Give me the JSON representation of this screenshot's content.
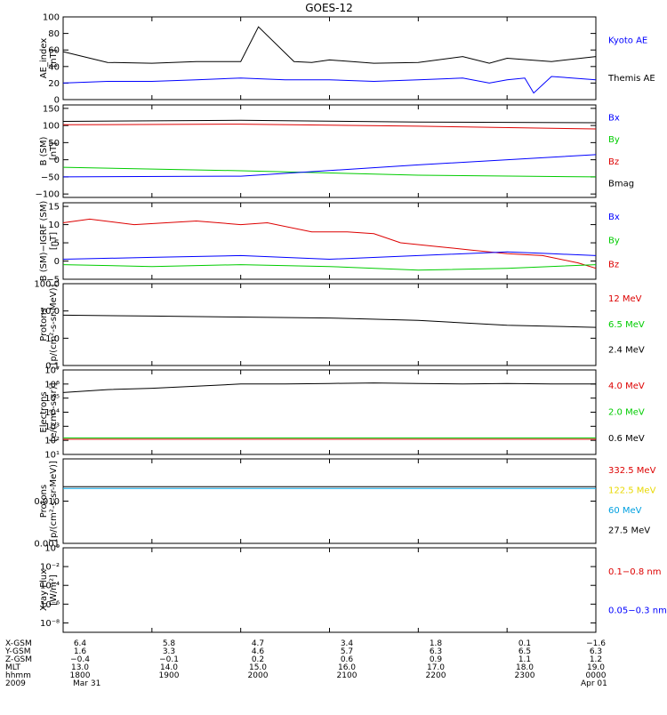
{
  "title": "GOES-12",
  "colors": {
    "black": "#000000",
    "blue": "#0000ff",
    "red": "#dd0000",
    "green": "#00cc00",
    "cyan": "#00a0e0",
    "yellow": "#e8d800",
    "frame": "#000000"
  },
  "chart_data": [
    {
      "type": "line",
      "ylabel": "AE_index",
      "yunit": "[nT]",
      "ylim": [
        0,
        100
      ],
      "yticks": [
        "0",
        "20",
        "40",
        "60",
        "80",
        "100"
      ],
      "ytick_values": [
        0,
        20,
        40,
        60,
        80,
        100
      ],
      "legend": [
        {
          "name": "Kyoto AE",
          "color": "#0000ff"
        },
        {
          "name": "Themis AE",
          "color": "#000000"
        }
      ],
      "series": [
        {
          "name": "Themis AE",
          "color": "#000000",
          "x": [
            0,
            0.5,
            1,
            1.5,
            2,
            2.2,
            2.6,
            2.8,
            3,
            3.5,
            4,
            4.5,
            4.8,
            5,
            5.5,
            6
          ],
          "y": [
            58,
            45,
            44,
            46,
            46,
            88,
            46,
            45,
            48,
            44,
            45,
            52,
            44,
            50,
            46,
            52
          ]
        },
        {
          "name": "Kyoto AE",
          "color": "#0000ff",
          "x": [
            0,
            0.5,
            1,
            1.5,
            2,
            2.5,
            3,
            3.5,
            4,
            4.5,
            4.8,
            5,
            5.2,
            5.3,
            5.5,
            6
          ],
          "y": [
            20,
            22,
            22,
            24,
            26,
            24,
            24,
            22,
            24,
            26,
            20,
            24,
            26,
            8,
            28,
            24
          ]
        }
      ]
    },
    {
      "type": "line",
      "ylabel": "B (SM)",
      "yunit": "[nT]",
      "ylim": [
        -110,
        160
      ],
      "yticks": [
        "−100",
        "−50",
        "0",
        "50",
        "100",
        "150"
      ],
      "ytick_values": [
        -100,
        -50,
        0,
        50,
        100,
        150
      ],
      "legend": [
        {
          "name": "Bx",
          "color": "#0000ff"
        },
        {
          "name": "By",
          "color": "#00cc00"
        },
        {
          "name": "Bz",
          "color": "#dd0000"
        },
        {
          "name": "Bmag",
          "color": "#000000"
        }
      ],
      "series": [
        {
          "name": "Bmag",
          "color": "#000000",
          "x": [
            0,
            2,
            4,
            6
          ],
          "y": [
            112,
            115,
            110,
            108
          ]
        },
        {
          "name": "Bz",
          "color": "#dd0000",
          "x": [
            0,
            2,
            4,
            6
          ],
          "y": [
            102,
            104,
            98,
            90
          ]
        },
        {
          "name": "By",
          "color": "#00cc00",
          "x": [
            0,
            2,
            4,
            6
          ],
          "y": [
            -22,
            -32,
            -45,
            -50
          ]
        },
        {
          "name": "Bx",
          "color": "#0000ff",
          "x": [
            0,
            2,
            4,
            6
          ],
          "y": [
            -50,
            -48,
            -15,
            15
          ]
        }
      ]
    },
    {
      "type": "line",
      "ylabel": "B (SM)−IGRF (SM)",
      "yunit": "[nT]",
      "ylim": [
        -5,
        16
      ],
      "yticks": [
        "−5",
        "0",
        "5",
        "10",
        "15"
      ],
      "ytick_values": [
        -5,
        0,
        5,
        10,
        15
      ],
      "legend": [
        {
          "name": "Bx",
          "color": "#0000ff"
        },
        {
          "name": "By",
          "color": "#00cc00"
        },
        {
          "name": "Bz",
          "color": "#dd0000"
        }
      ],
      "series": [
        {
          "name": "Bz",
          "color": "#dd0000",
          "x": [
            0,
            0.3,
            0.8,
            1.5,
            2,
            2.3,
            2.8,
            3.2,
            3.5,
            3.8,
            4.2,
            4.6,
            5,
            5.4,
            5.8,
            6
          ],
          "y": [
            10.5,
            11.5,
            10,
            11,
            10,
            10.5,
            8,
            8,
            7.5,
            5,
            4,
            3,
            2,
            1.5,
            -0.5,
            -2
          ]
        },
        {
          "name": "Bx",
          "color": "#0000ff",
          "x": [
            0,
            1,
            2,
            3,
            4,
            5,
            5.5,
            6
          ],
          "y": [
            0.5,
            1,
            1.5,
            0.5,
            1.5,
            2.5,
            2,
            1.5
          ]
        },
        {
          "name": "By",
          "color": "#00cc00",
          "x": [
            0,
            1,
            2,
            3,
            4,
            5,
            6
          ],
          "y": [
            -1,
            -1.5,
            -1,
            -1.5,
            -2.5,
            -2,
            -1
          ]
        }
      ]
    },
    {
      "type": "line",
      "ylabel": "Protons",
      "yunit": "[p/(cm²-s-sr-MeV)]",
      "yscale": "log",
      "ylim": [
        0.1,
        100
      ],
      "yticks": [
        "0.1",
        "1.0",
        "10.0",
        "100.0"
      ],
      "ytick_values": [
        0.1,
        1,
        10,
        100
      ],
      "legend": [
        {
          "name": "12 MeV",
          "color": "#dd0000"
        },
        {
          "name": "6.5 MeV",
          "color": "#00cc00"
        },
        {
          "name": "2.4 MeV",
          "color": "#000000"
        }
      ],
      "series": [
        {
          "name": "2.4 MeV",
          "color": "#000000",
          "x": [
            0,
            1,
            2,
            3,
            4,
            5,
            6
          ],
          "y": [
            7,
            6.5,
            6,
            5.5,
            4.5,
            3,
            2.5
          ]
        }
      ]
    },
    {
      "type": "line",
      "ylabel": "Electrons",
      "yunit": "[e/(cm²-s-sr)]",
      "yscale": "log",
      "ylim": [
        10,
        10000000
      ],
      "yticks": [
        "10¹",
        "10²",
        "10³",
        "10⁴",
        "10⁵",
        "10⁶",
        "10⁷"
      ],
      "ytick_values": [
        10,
        100,
        1000,
        10000,
        100000,
        1000000,
        10000000
      ],
      "legend": [
        {
          "name": "4.0 MeV",
          "color": "#dd0000"
        },
        {
          "name": "2.0 MeV",
          "color": "#00cc00"
        },
        {
          "name": "0.6 MeV",
          "color": "#000000"
        }
      ],
      "series": [
        {
          "name": "0.6 MeV",
          "color": "#000000",
          "x": [
            0,
            0.5,
            1,
            1.5,
            2,
            2.5,
            3,
            3.5,
            4,
            4.5,
            5,
            5.5,
            6
          ],
          "y": [
            250000,
            400000,
            500000,
            700000,
            1000000,
            1000000,
            1100000,
            1200000,
            1100000,
            1000000,
            1100000,
            1000000,
            1000000
          ]
        },
        {
          "name": "2.0 MeV",
          "color": "#00cc00",
          "x": [
            0,
            6
          ],
          "y": [
            150,
            150
          ]
        },
        {
          "name": "4.0 MeV",
          "color": "#dd0000",
          "x": [
            0,
            6
          ],
          "y": [
            120,
            120
          ]
        }
      ]
    },
    {
      "type": "line",
      "ylabel": "Protons",
      "yunit": "[p/(cm²-s-sr-MeV)]",
      "yscale": "log",
      "ylim": [
        0.001,
        0.1
      ],
      "yticks": [
        "0.001",
        "0.010"
      ],
      "ytick_values": [
        0.001,
        0.01
      ],
      "legend": [
        {
          "name": "332.5 MeV",
          "color": "#dd0000"
        },
        {
          "name": "122.5 MeV",
          "color": "#e8d800"
        },
        {
          "name": "60 MeV",
          "color": "#00a0e0"
        },
        {
          "name": "27.5 MeV",
          "color": "#000000"
        }
      ],
      "series": [
        {
          "name": "27.5 MeV",
          "color": "#000000",
          "x": [
            0,
            6
          ],
          "y": [
            0.022,
            0.022
          ]
        },
        {
          "name": "60 MeV",
          "color": "#00a0e0",
          "x": [
            0,
            6
          ],
          "y": [
            0.02,
            0.02
          ]
        }
      ]
    },
    {
      "type": "line",
      "ylabel": "Xray Flux",
      "yunit": "[W/m²]",
      "yscale": "log",
      "ylim": [
        1e-09,
        1
      ],
      "yticks": [
        "10⁰",
        "10⁻²",
        "10⁻⁴",
        "10⁻⁶",
        "10⁻⁸"
      ],
      "ytick_values": [
        1,
        0.01,
        0.0001,
        1e-06,
        1e-08
      ],
      "legend": [
        {
          "name": "0.1−0.8 nm",
          "color": "#dd0000"
        },
        {
          "name": "0.05−0.3 nm",
          "color": "#0000ff"
        }
      ],
      "series": []
    }
  ],
  "footer": {
    "row_labels": [
      "X-GSM",
      "Y-GSM",
      "Z-GSM",
      "MLT",
      "hhmm",
      "2009"
    ],
    "columns": [
      [
        "6.4",
        "1.6",
        "−0.4",
        "13.0",
        "1800",
        "Mar 31"
      ],
      [
        "5.8",
        "3.3",
        "−0.1",
        "14.0",
        "1900",
        ""
      ],
      [
        "4.7",
        "4.6",
        "0.2",
        "15.0",
        "2000",
        ""
      ],
      [
        "3.4",
        "5.7",
        "0.6",
        "16.0",
        "2100",
        ""
      ],
      [
        "1.8",
        "6.3",
        "0.9",
        "17.0",
        "2200",
        ""
      ],
      [
        "0.1",
        "6.5",
        "1.1",
        "18.0",
        "2300",
        ""
      ],
      [
        "−1.6",
        "6.3",
        "1.2",
        "19.0",
        "0000",
        "Apr 01"
      ]
    ]
  }
}
